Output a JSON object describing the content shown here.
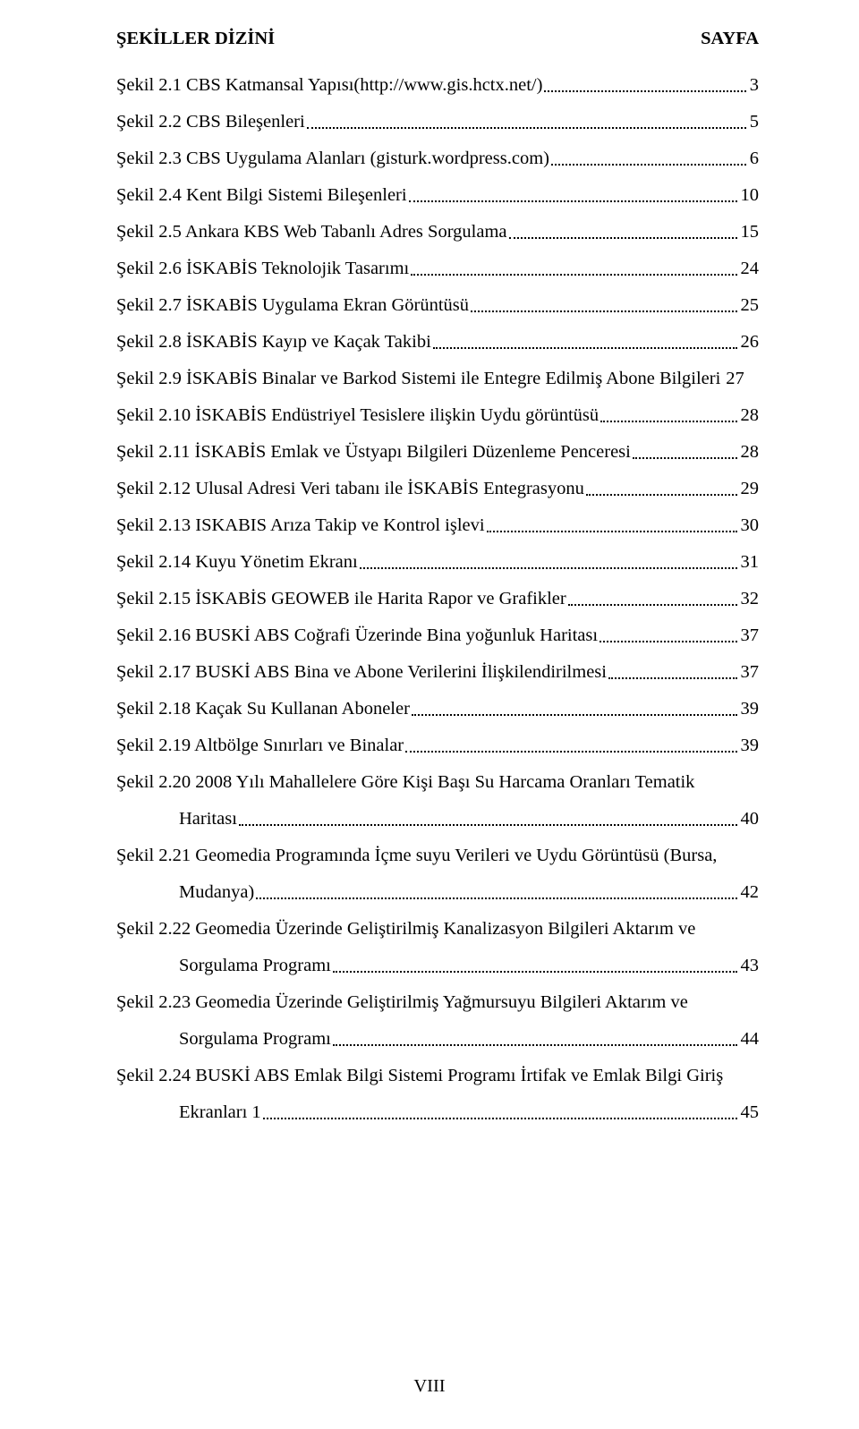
{
  "header": {
    "left": "ŞEKİLLER DİZİNİ",
    "right": "SAYFA"
  },
  "entries": [
    {
      "label": "Şekil 2.1 CBS Katmansal Yapısı(http://www.gis.hctx.net/)",
      "page": "3"
    },
    {
      "label": "Şekil 2.2 CBS Bileşenleri",
      "page": "5"
    },
    {
      "label": "Şekil 2.3 CBS Uygulama Alanları (gisturk.wordpress.com)",
      "page": "6"
    },
    {
      "label": "Şekil 2.4 Kent Bilgi Sistemi Bileşenleri",
      "page": "10"
    },
    {
      "label": "Şekil 2.5 Ankara KBS Web Tabanlı Adres Sorgulama",
      "page": "15"
    },
    {
      "label": "Şekil 2.6 İSKABİS Teknolojik Tasarımı",
      "page": "24"
    },
    {
      "label": "Şekil 2.7 İSKABİS Uygulama Ekran Görüntüsü",
      "page": "25"
    },
    {
      "label": "Şekil 2.8 İSKABİS Kayıp ve Kaçak Takibi",
      "page": "26"
    },
    {
      "label": "Şekil 2.9 İSKABİS Binalar ve Barkod Sistemi ile Entegre Edilmiş Abone Bilgileri",
      "page": "27",
      "inline": true
    },
    {
      "label": "Şekil 2.10 İSKABİS Endüstriyel Tesislere ilişkin Uydu görüntüsü",
      "page": "28"
    },
    {
      "label": "Şekil 2.11 İSKABİS Emlak ve Üstyapı Bilgileri Düzenleme Penceresi",
      "page": "28"
    },
    {
      "label": "Şekil 2.12 Ulusal Adresi Veri tabanı ile İSKABİS Entegrasyonu",
      "page": "29"
    },
    {
      "label": "Şekil 2.13 ISKABIS Arıza Takip ve Kontrol işlevi",
      "page": "30"
    },
    {
      "label": "Şekil 2.14 Kuyu Yönetim Ekranı",
      "page": "31"
    },
    {
      "label": "Şekil 2.15 İSKABİS GEOWEB ile Harita Rapor ve Grafikler",
      "page": "32"
    },
    {
      "label": "Şekil 2.16 BUSKİ ABS Coğrafi Üzerinde Bina yoğunluk Haritası",
      "page": "37"
    },
    {
      "label": "Şekil 2.17 BUSKİ ABS Bina ve Abone Verilerini İlişkilendirilmesi",
      "page": "37"
    },
    {
      "label": "Şekil 2.18 Kaçak Su Kullanan Aboneler",
      "page": "39"
    },
    {
      "label": "Şekil 2.19 Altbölge Sınırları ve Binalar",
      "page": "39"
    },
    {
      "multiline": true,
      "line1": "Şekil 2.20 2008 Yılı Mahallelere Göre Kişi Başı Su Harcama Oranları Tematik",
      "line2": "Haritası",
      "page": "40"
    },
    {
      "multiline": true,
      "line1": "Şekil 2.21 Geomedia Programında İçme suyu Verileri ve Uydu Görüntüsü (Bursa,",
      "line2": "Mudanya)",
      "page": "42"
    },
    {
      "multiline": true,
      "line1": "Şekil 2.22 Geomedia Üzerinde Geliştirilmiş Kanalizasyon Bilgileri Aktarım ve",
      "line2": "Sorgulama Programı",
      "page": "43"
    },
    {
      "multiline": true,
      "line1": "Şekil 2.23 Geomedia Üzerinde Geliştirilmiş Yağmursuyu Bilgileri Aktarım ve",
      "line2": "Sorgulama Programı",
      "page": "44"
    },
    {
      "multiline": true,
      "line1": "Şekil 2.24 BUSKİ ABS Emlak Bilgi Sistemi Programı İrtifak ve Emlak Bilgi Giriş",
      "line2": "Ekranları 1",
      "page": "45"
    }
  ],
  "pageNumber": "VIII"
}
